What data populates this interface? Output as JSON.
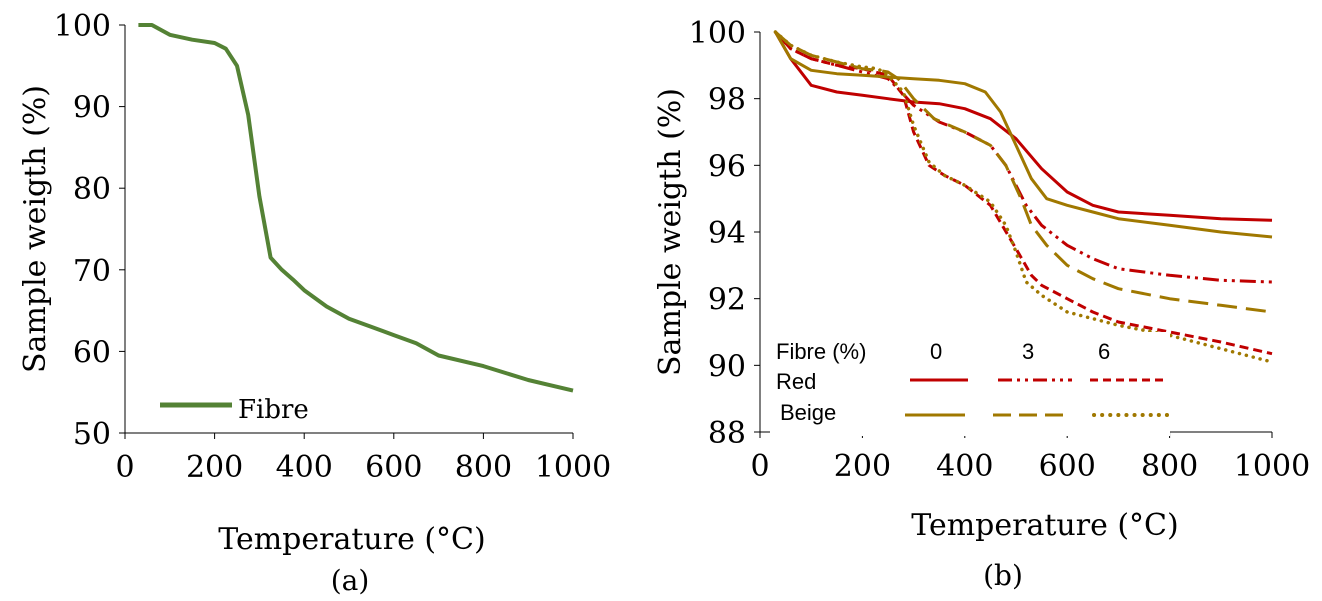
{
  "panel_a": {
    "caption": "(a)",
    "chart_data": {
      "type": "line",
      "title": "",
      "xlabel": "Temperature (°C)",
      "ylabel": "Sample weigth (%)",
      "xlim": [
        0,
        1000
      ],
      "ylim": [
        50,
        100
      ],
      "xticks": [
        "0",
        "200",
        "400",
        "600",
        "800",
        "1000"
      ],
      "yticks": [
        "50",
        "60",
        "70",
        "80",
        "90",
        "100"
      ],
      "grid": false,
      "legend_position": "bottom-left",
      "series": [
        {
          "name": "Fibre",
          "color": "#548235",
          "dash": "solid",
          "points": [
            [
              30,
              100
            ],
            [
              60,
              100
            ],
            [
              100,
              98.8
            ],
            [
              150,
              98.2
            ],
            [
              200,
              97.8
            ],
            [
              225,
              97.1
            ],
            [
              250,
              95
            ],
            [
              275,
              89
            ],
            [
              300,
              79
            ],
            [
              325,
              71.5
            ],
            [
              350,
              70
            ],
            [
              375,
              68.8
            ],
            [
              400,
              67.5
            ],
            [
              450,
              65.5
            ],
            [
              500,
              64
            ],
            [
              550,
              63
            ],
            [
              600,
              62
            ],
            [
              650,
              61
            ],
            [
              700,
              59.5
            ],
            [
              800,
              58.2
            ],
            [
              900,
              56.5
            ],
            [
              1000,
              55.2
            ]
          ]
        }
      ]
    }
  },
  "panel_b": {
    "caption": "(b)",
    "legend": {
      "header": "Fibre (%)",
      "levels": [
        "0",
        "3",
        "6"
      ],
      "rows": [
        "Red",
        "Beige"
      ]
    },
    "chart_data": {
      "type": "line",
      "title": "",
      "xlabel": "Temperature (°C)",
      "ylabel": "Sample weigth (%)",
      "xlim": [
        0,
        1000
      ],
      "ylim": [
        88,
        100
      ],
      "xticks": [
        "0",
        "200",
        "400",
        "600",
        "800",
        "1000"
      ],
      "yticks": [
        "88",
        "90",
        "92",
        "94",
        "96",
        "98",
        "100"
      ],
      "grid": false,
      "legend_position": "bottom-left",
      "series": [
        {
          "color": "#c00000",
          "dash": "solid",
          "width": 3,
          "points": [
            [
              30,
              100
            ],
            [
              60,
              99.2
            ],
            [
              100,
              98.4
            ],
            [
              150,
              98.2
            ],
            [
              200,
              98.1
            ],
            [
              250,
              98
            ],
            [
              300,
              97.9
            ],
            [
              350,
              97.85
            ],
            [
              400,
              97.7
            ],
            [
              450,
              97.4
            ],
            [
              500,
              96.8
            ],
            [
              550,
              95.9
            ],
            [
              600,
              95.2
            ],
            [
              650,
              94.8
            ],
            [
              700,
              94.6
            ],
            [
              800,
              94.5
            ],
            [
              900,
              94.4
            ],
            [
              1000,
              94.35
            ]
          ]
        },
        {
          "color": "#c00000",
          "dash": "dashdotdot",
          "width": 3,
          "points": [
            [
              30,
              100
            ],
            [
              60,
              99.5
            ],
            [
              100,
              99.2
            ],
            [
              150,
              99
            ],
            [
              200,
              98.8
            ],
            [
              250,
              98.6
            ],
            [
              270,
              98.3
            ],
            [
              300,
              97.8
            ],
            [
              350,
              97.3
            ],
            [
              400,
              97
            ],
            [
              450,
              96.6
            ],
            [
              480,
              96
            ],
            [
              520,
              94.8
            ],
            [
              550,
              94.2
            ],
            [
              600,
              93.6
            ],
            [
              650,
              93.2
            ],
            [
              700,
              92.9
            ],
            [
              800,
              92.7
            ],
            [
              900,
              92.55
            ],
            [
              1000,
              92.5
            ]
          ]
        },
        {
          "color": "#c00000",
          "dash": "dash",
          "width": 3,
          "points": [
            [
              30,
              100
            ],
            [
              60,
              99.5
            ],
            [
              100,
              99.2
            ],
            [
              150,
              99
            ],
            [
              200,
              98.9
            ],
            [
              250,
              98.7
            ],
            [
              280,
              98.1
            ],
            [
              300,
              97
            ],
            [
              330,
              96
            ],
            [
              360,
              95.7
            ],
            [
              400,
              95.4
            ],
            [
              450,
              94.8
            ],
            [
              500,
              93.5
            ],
            [
              530,
              92.7
            ],
            [
              550,
              92.4
            ],
            [
              600,
              92
            ],
            [
              650,
              91.6
            ],
            [
              700,
              91.3
            ],
            [
              800,
              91
            ],
            [
              900,
              90.7
            ],
            [
              1000,
              90.35
            ]
          ]
        },
        {
          "color": "#a07800",
          "dash": "solid",
          "width": 3,
          "points": [
            [
              30,
              100
            ],
            [
              60,
              99.2
            ],
            [
              100,
              98.85
            ],
            [
              150,
              98.75
            ],
            [
              200,
              98.7
            ],
            [
              250,
              98.65
            ],
            [
              300,
              98.6
            ],
            [
              350,
              98.55
            ],
            [
              400,
              98.45
            ],
            [
              440,
              98.2
            ],
            [
              470,
              97.6
            ],
            [
              500,
              96.6
            ],
            [
              530,
              95.6
            ],
            [
              560,
              95
            ],
            [
              600,
              94.8
            ],
            [
              650,
              94.6
            ],
            [
              700,
              94.4
            ],
            [
              800,
              94.2
            ],
            [
              900,
              94
            ],
            [
              1000,
              93.85
            ]
          ]
        },
        {
          "color": "#a07800",
          "dash": "longdash",
          "width": 3,
          "points": [
            [
              30,
              100
            ],
            [
              60,
              99.6
            ],
            [
              100,
              99.3
            ],
            [
              150,
              99.1
            ],
            [
              200,
              98.9
            ],
            [
              230,
              98.85
            ],
            [
              250,
              98.8
            ],
            [
              270,
              98.6
            ],
            [
              300,
              98
            ],
            [
              340,
              97.4
            ],
            [
              400,
              97
            ],
            [
              450,
              96.6
            ],
            [
              480,
              96
            ],
            [
              510,
              95
            ],
            [
              530,
              94.2
            ],
            [
              560,
              93.6
            ],
            [
              600,
              93
            ],
            [
              650,
              92.6
            ],
            [
              700,
              92.3
            ],
            [
              800,
              92
            ],
            [
              900,
              91.8
            ],
            [
              1000,
              91.6
            ]
          ]
        },
        {
          "color": "#a07800",
          "dash": "dot",
          "width": 3.5,
          "points": [
            [
              30,
              100
            ],
            [
              60,
              99.6
            ],
            [
              100,
              99.3
            ],
            [
              150,
              99.1
            ],
            [
              200,
              98.95
            ],
            [
              230,
              98.9
            ],
            [
              250,
              98.7
            ],
            [
              280,
              98.2
            ],
            [
              300,
              97.2
            ],
            [
              330,
              96.1
            ],
            [
              360,
              95.7
            ],
            [
              400,
              95.4
            ],
            [
              450,
              94.9
            ],
            [
              480,
              94.2
            ],
            [
              500,
              93.4
            ],
            [
              520,
              92.5
            ],
            [
              550,
              92.1
            ],
            [
              600,
              91.6
            ],
            [
              700,
              91.2
            ],
            [
              800,
              90.9
            ],
            [
              900,
              90.5
            ],
            [
              1000,
              90.1
            ]
          ]
        }
      ]
    }
  }
}
